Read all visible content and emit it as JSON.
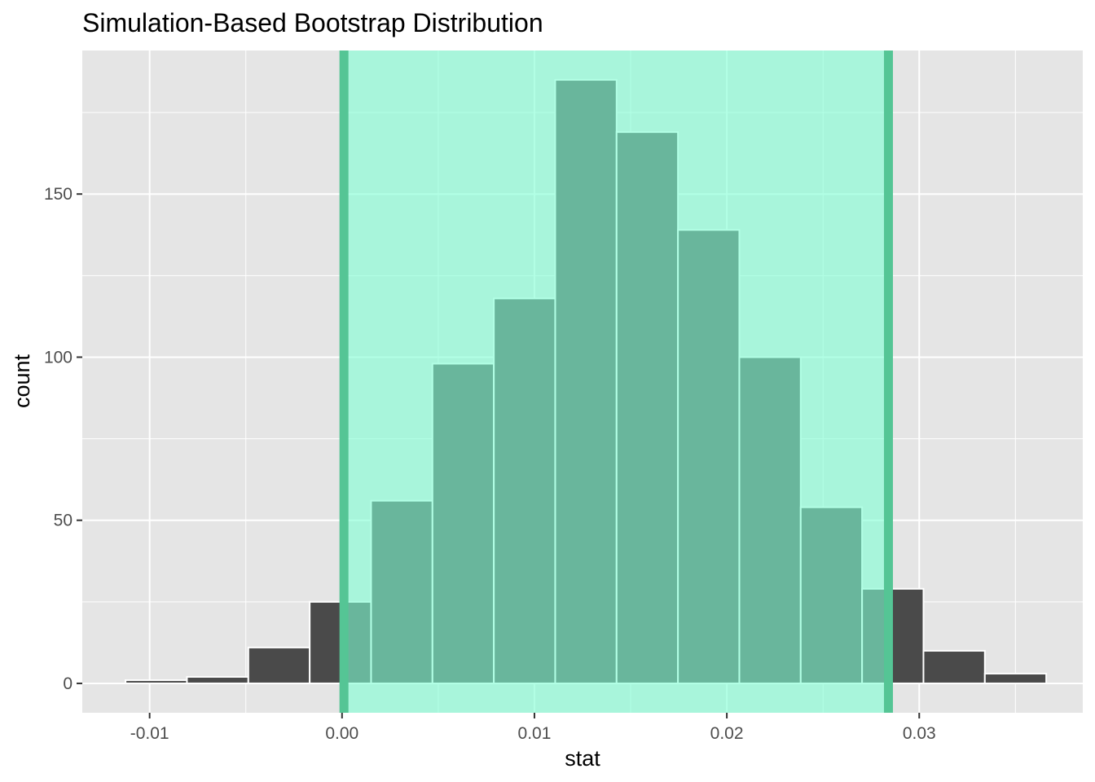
{
  "chart_data": {
    "type": "bar",
    "title": "Simulation-Based Bootstrap Distribution",
    "xlabel": "stat",
    "ylabel": "count",
    "xlim": [
      -0.0135,
      0.0385
    ],
    "ylim": [
      -9,
      194
    ],
    "x_ticks": [
      -0.01,
      0.0,
      0.01,
      0.02,
      0.03
    ],
    "x_tick_labels": [
      "-0.01",
      "0.00",
      "0.01",
      "0.02",
      "0.03"
    ],
    "y_ticks": [
      0,
      50,
      100,
      150
    ],
    "y_tick_labels": [
      "0",
      "50",
      "100",
      "150"
    ],
    "grid": true,
    "bin_width": 0.00319,
    "bins": [
      {
        "x0": -0.01125,
        "x1": -0.00806,
        "count": 1
      },
      {
        "x0": -0.00806,
        "x1": -0.00487,
        "count": 2
      },
      {
        "x0": -0.00487,
        "x1": -0.00168,
        "count": 11
      },
      {
        "x0": -0.00168,
        "x1": 0.00151,
        "count": 25
      },
      {
        "x0": 0.00151,
        "x1": 0.0047,
        "count": 56
      },
      {
        "x0": 0.0047,
        "x1": 0.00789,
        "count": 98
      },
      {
        "x0": 0.00789,
        "x1": 0.01108,
        "count": 118
      },
      {
        "x0": 0.01108,
        "x1": 0.01427,
        "count": 185
      },
      {
        "x0": 0.01427,
        "x1": 0.01746,
        "count": 169
      },
      {
        "x0": 0.01746,
        "x1": 0.02065,
        "count": 139
      },
      {
        "x0": 0.02065,
        "x1": 0.02384,
        "count": 100
      },
      {
        "x0": 0.02384,
        "x1": 0.02703,
        "count": 54
      },
      {
        "x0": 0.02703,
        "x1": 0.03022,
        "count": 29
      },
      {
        "x0": 0.03022,
        "x1": 0.03341,
        "count": 10
      },
      {
        "x0": 0.03341,
        "x1": 0.0366,
        "count": 3
      }
    ],
    "confidence_interval": {
      "lower": 0.0001,
      "upper": 0.0284
    },
    "colors": {
      "panel": "#e5e5e5",
      "grid": "#ffffff",
      "bar_fill": "#4a4a4a",
      "bar_outline": "#ffffff",
      "ci_fill": "#7fffd4",
      "ci_fill_opacity": 0.6,
      "ci_line": "#55c595"
    }
  }
}
